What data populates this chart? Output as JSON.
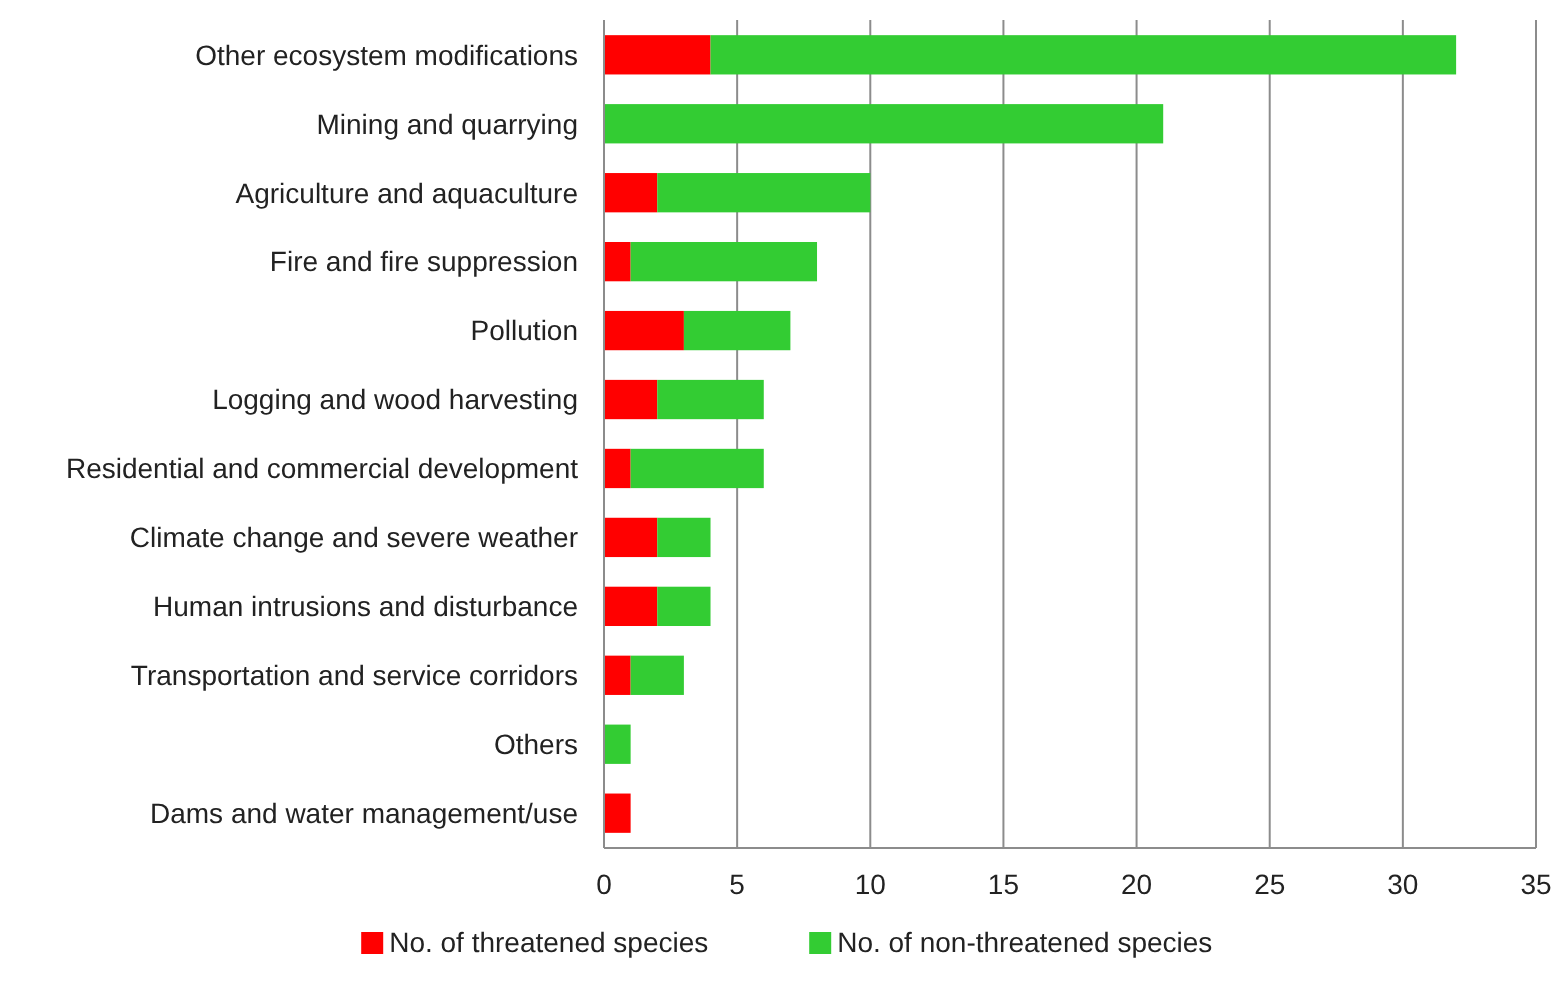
{
  "chart_data": {
    "type": "bar",
    "orientation": "horizontal",
    "stacked": true,
    "categories": [
      "Other ecosystem modifications",
      "Mining and quarrying",
      "Agriculture and aquaculture",
      "Fire and fire suppression",
      "Pollution",
      "Logging and wood harvesting",
      "Residential and commercial development",
      "Climate change and severe weather",
      "Human intrusions and disturbance",
      "Transportation and service corridors",
      "Others",
      "Dams and water management/use"
    ],
    "series": [
      {
        "name": "No. of threatened species",
        "color": "#ff0000",
        "values": [
          4,
          0,
          2,
          1,
          3,
          2,
          1,
          2,
          2,
          1,
          0,
          1
        ]
      },
      {
        "name": "No. of non-threatened species",
        "color": "#33cc33",
        "values": [
          28,
          21,
          8,
          7,
          4,
          4,
          5,
          2,
          2,
          2,
          1,
          0
        ]
      }
    ],
    "xlim": [
      0,
      35
    ],
    "xticks": [
      0,
      5,
      10,
      15,
      20,
      25,
      30,
      35
    ],
    "grid": "x",
    "legend": "bottom"
  }
}
